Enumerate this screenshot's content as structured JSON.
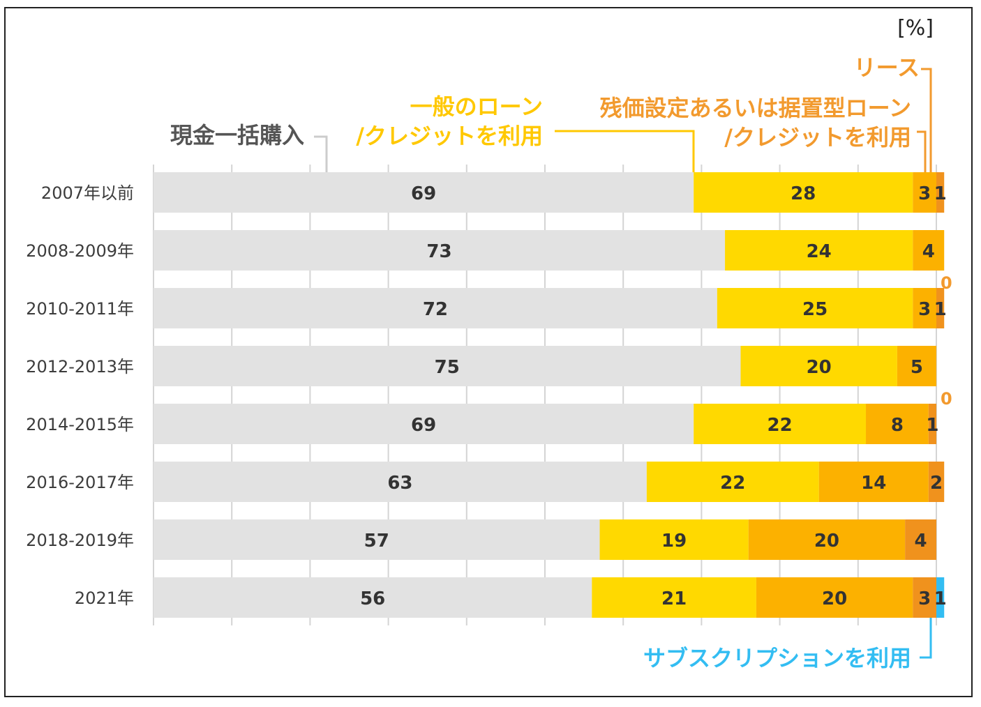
{
  "chart_data": {
    "type": "bar",
    "orientation": "horizontal",
    "stacked": true,
    "unit_label": "[%]",
    "categories": [
      "2007年以前",
      "2008-2009年",
      "2010-2011年",
      "2012-2013年",
      "2014-2015年",
      "2016-2017年",
      "2018-2019年",
      "2021年"
    ],
    "series": [
      {
        "name": "現金一括購入",
        "color": "#e2e2e2",
        "values": [
          69,
          73,
          72,
          75,
          69,
          63,
          57,
          56
        ]
      },
      {
        "name": "一般のローン/クレジットを利用",
        "name_lines": [
          "一般のローン",
          "/クレジットを利用"
        ],
        "color": "#ffd900",
        "values": [
          28,
          24,
          25,
          20,
          22,
          22,
          19,
          21
        ]
      },
      {
        "name": "残価設定あるいは据置型ローン/クレジットを利用",
        "name_lines": [
          "残価設定あるいは据置型ローン",
          "/クレジットを利用"
        ],
        "color": "#fcb100",
        "values": [
          3,
          4,
          3,
          5,
          8,
          14,
          20,
          20
        ]
      },
      {
        "name": "リース",
        "color": "#f0921d",
        "values": [
          1,
          0,
          1,
          0,
          1,
          2,
          4,
          3
        ]
      },
      {
        "name": "サブスクリプションを利用",
        "color": "#33bdf2",
        "values": [
          0,
          0,
          0,
          0,
          0,
          0,
          0,
          1
        ]
      }
    ],
    "legend_colors": {
      "gray_label": "#555555",
      "yellow_label": "#ffc800",
      "orange_label": "#f29a2e",
      "blue_label": "#33bdf2"
    },
    "xlim": [
      0,
      100
    ],
    "grid": true
  }
}
